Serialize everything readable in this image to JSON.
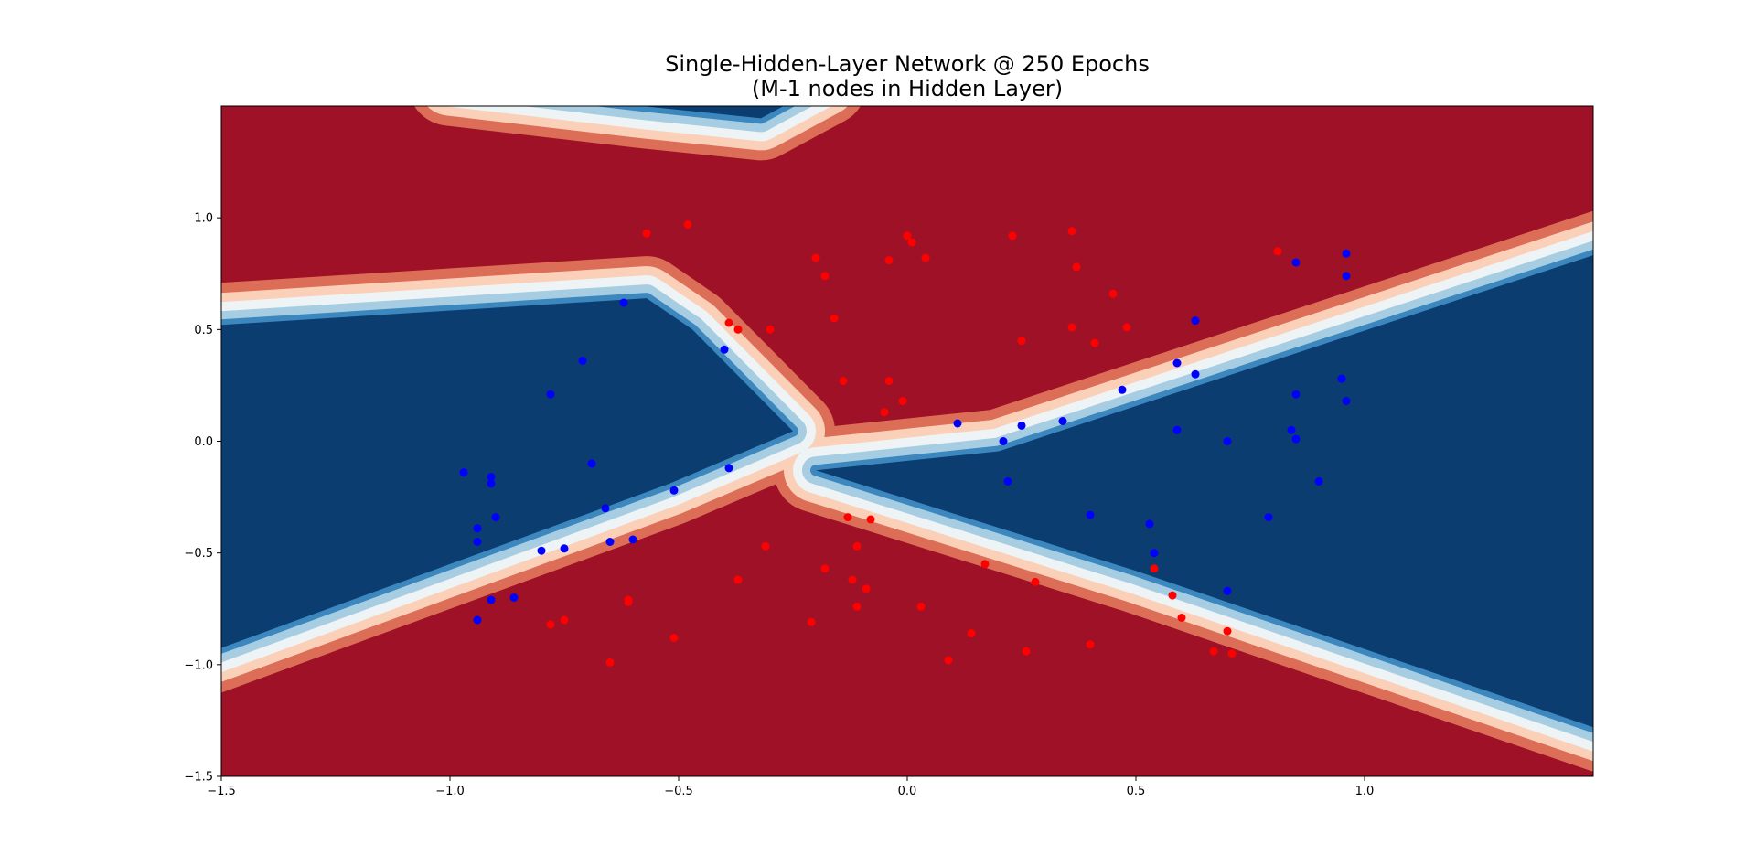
{
  "chart_data": {
    "type": "contour",
    "title": "Single-Hidden-Layer Network @ 250 Epochs",
    "subtitle": "(M-1 nodes in Hidden Layer)",
    "xlabel": "",
    "ylabel": "",
    "xlim": [
      -1.5,
      1.5
    ],
    "ylim": [
      -1.5,
      1.5
    ],
    "x_ticks": [
      {
        "value": -1.5,
        "label": "−1.5"
      },
      {
        "value": -1.0,
        "label": "−1.0"
      },
      {
        "value": -0.5,
        "label": "−0.5"
      },
      {
        "value": 0.0,
        "label": "0.0"
      },
      {
        "value": 0.5,
        "label": "0.5"
      },
      {
        "value": 1.0,
        "label": "1.0"
      }
    ],
    "y_ticks": [
      {
        "value": -1.5,
        "label": "−1.5"
      },
      {
        "value": -1.0,
        "label": "−1.0"
      },
      {
        "value": -0.5,
        "label": "−0.5"
      },
      {
        "value": 0.0,
        "label": "0.0"
      },
      {
        "value": 0.5,
        "label": "0.5"
      },
      {
        "value": 1.0,
        "label": "1.0"
      }
    ],
    "grid": false,
    "colormap": "RdBu",
    "contour_colors": [
      "#0c3d70",
      "#3b87be",
      "#a7cde2",
      "#eef3f6",
      "#fbd0b9",
      "#dc6e57",
      "#9e1126"
    ],
    "series": [
      {
        "color": "#ff0000",
        "points": [
          [
            -0.57,
            0.93
          ],
          [
            -0.48,
            0.97
          ],
          [
            -0.39,
            0.53
          ],
          [
            -0.37,
            0.5
          ],
          [
            -0.3,
            0.5
          ],
          [
            -0.2,
            0.82
          ],
          [
            -0.18,
            0.74
          ],
          [
            -0.16,
            0.55
          ],
          [
            -0.14,
            0.27
          ],
          [
            -0.04,
            0.81
          ],
          [
            -0.04,
            0.27
          ],
          [
            -0.05,
            0.13
          ],
          [
            -0.01,
            0.18
          ],
          [
            0.0,
            0.92
          ],
          [
            0.01,
            0.89
          ],
          [
            0.04,
            0.82
          ],
          [
            0.23,
            0.92
          ],
          [
            0.25,
            0.45
          ],
          [
            0.36,
            0.94
          ],
          [
            0.36,
            0.51
          ],
          [
            0.37,
            0.78
          ],
          [
            0.41,
            0.44
          ],
          [
            0.45,
            0.66
          ],
          [
            0.48,
            0.51
          ],
          [
            0.81,
            0.85
          ],
          [
            -0.78,
            -0.82
          ],
          [
            -0.75,
            -0.8
          ],
          [
            -0.65,
            -0.99
          ],
          [
            -0.61,
            -0.71
          ],
          [
            -0.61,
            -0.72
          ],
          [
            -0.51,
            -0.88
          ],
          [
            -0.37,
            -0.62
          ],
          [
            -0.31,
            -0.47
          ],
          [
            -0.21,
            -0.81
          ],
          [
            -0.18,
            -0.57
          ],
          [
            -0.13,
            -0.34
          ],
          [
            -0.12,
            -0.62
          ],
          [
            -0.11,
            -0.47
          ],
          [
            -0.11,
            -0.74
          ],
          [
            -0.09,
            -0.66
          ],
          [
            -0.08,
            -0.35
          ],
          [
            0.03,
            -0.74
          ],
          [
            0.09,
            -0.98
          ],
          [
            0.14,
            -0.86
          ],
          [
            0.17,
            -0.55
          ],
          [
            0.26,
            -0.94
          ],
          [
            0.28,
            -0.63
          ],
          [
            0.4,
            -0.91
          ],
          [
            0.54,
            -0.57
          ],
          [
            0.58,
            -0.69
          ],
          [
            0.6,
            -0.79
          ],
          [
            0.67,
            -0.94
          ],
          [
            0.7,
            -0.85
          ],
          [
            0.71,
            -0.95
          ]
        ]
      },
      {
        "color": "#0000ff",
        "points": [
          [
            -0.62,
            0.62
          ],
          [
            -0.4,
            0.41
          ],
          [
            -0.71,
            0.36
          ],
          [
            -0.78,
            0.21
          ],
          [
            -0.97,
            -0.14
          ],
          [
            -0.91,
            -0.16
          ],
          [
            -0.91,
            -0.19
          ],
          [
            -0.9,
            -0.34
          ],
          [
            -0.94,
            -0.39
          ],
          [
            -0.94,
            -0.45
          ],
          [
            -0.69,
            -0.1
          ],
          [
            -0.66,
            -0.3
          ],
          [
            -0.65,
            -0.45
          ],
          [
            -0.6,
            -0.44
          ],
          [
            -0.51,
            -0.22
          ],
          [
            -0.39,
            -0.12
          ],
          [
            -0.8,
            -0.49
          ],
          [
            -0.75,
            -0.48
          ],
          [
            -0.91,
            -0.71
          ],
          [
            -0.86,
            -0.7
          ],
          [
            -0.94,
            -0.8
          ],
          [
            0.11,
            0.08
          ],
          [
            0.21,
            0.0
          ],
          [
            0.25,
            0.07
          ],
          [
            0.34,
            0.09
          ],
          [
            0.22,
            -0.18
          ],
          [
            0.4,
            -0.33
          ],
          [
            0.53,
            -0.37
          ],
          [
            0.54,
            -0.5
          ],
          [
            0.7,
            -0.67
          ],
          [
            0.47,
            0.23
          ],
          [
            0.59,
            0.35
          ],
          [
            0.59,
            0.05
          ],
          [
            0.63,
            0.54
          ],
          [
            0.63,
            0.3
          ],
          [
            0.7,
            0.0
          ],
          [
            0.79,
            -0.34
          ],
          [
            0.84,
            0.05
          ],
          [
            0.85,
            0.01
          ],
          [
            0.85,
            0.8
          ],
          [
            0.85,
            0.21
          ],
          [
            0.9,
            -0.18
          ],
          [
            0.95,
            0.28
          ],
          [
            0.96,
            0.84
          ],
          [
            0.96,
            0.74
          ],
          [
            0.96,
            0.18
          ]
        ]
      }
    ]
  }
}
